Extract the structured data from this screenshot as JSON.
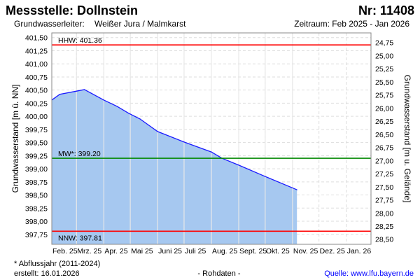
{
  "header": {
    "title": "Messstelle: Dollnstein",
    "number": "Nr: 11408",
    "aquifer_label": "Grundwasserleiter:",
    "aquifer_value": "Weißer Jura / Malmkarst",
    "period": "Zeitraum: Feb 2025 - Jan 2026"
  },
  "footer": {
    "note": "* Abflussjahr (2011-2024)",
    "created": "erstellt:  16.01.2026",
    "rawdata": "- Rohdaten -",
    "source": "Quelle: www.lfu.bayern.de"
  },
  "colors": {
    "fill": "#a6c8f0",
    "line": "#1a1aff",
    "hhw": "#ff0000",
    "mw": "#008800",
    "nnw": "#ff0000",
    "source": "#0000ff"
  },
  "chart_data": {
    "type": "area",
    "ylabel": "Grundwasserstand [m ü. NN]",
    "ylabel_right": "Grundwasserstand [m u. Gelände]",
    "ylim": [
      397.56,
      401.59
    ],
    "yticks": [
      "401,50",
      "401,25",
      "401,00",
      "400,75",
      "400,50",
      "400,25",
      "400,00",
      "399,75",
      "399,50",
      "399,25",
      "399,00",
      "398,75",
      "398,50",
      "398,25",
      "398,00",
      "397,75"
    ],
    "ytick_values": [
      401.5,
      401.25,
      401.0,
      400.75,
      400.5,
      400.25,
      400.0,
      399.75,
      399.5,
      399.25,
      399.0,
      398.75,
      398.5,
      398.25,
      398.0,
      397.75
    ],
    "right_offset": 426.157,
    "yticks_right": [
      "24,75",
      "25,00",
      "25,25",
      "25,50",
      "25,75",
      "26,00",
      "26,25",
      "26,50",
      "26,75",
      "27,00",
      "27,25",
      "27,50",
      "27,75",
      "28,00",
      "28,25",
      "28,50"
    ],
    "ytick_right_values": [
      24.75,
      25.0,
      25.25,
      25.5,
      25.75,
      26.0,
      26.25,
      26.5,
      26.75,
      27.0,
      27.25,
      27.5,
      27.75,
      28.0,
      28.25,
      28.5
    ],
    "xlim": [
      "2025-02-01",
      "2026-01-29"
    ],
    "xticks": [
      "Feb. 25",
      "Mrz. 25",
      "Apr. 25",
      "Mai 25",
      "Juni 25",
      "Juli 25",
      "Aug. 25",
      "Sept. 25",
      "Okt. 25",
      "Nov. 25",
      "Dez. 25",
      "Jan. 26"
    ],
    "xtick_dates": [
      "2025-02-01",
      "2025-03-01",
      "2025-04-01",
      "2025-05-01",
      "2025-06-01",
      "2025-07-01",
      "2025-08-01",
      "2025-09-01",
      "2025-10-01",
      "2025-11-01",
      "2025-12-01",
      "2026-01-01"
    ],
    "series": [
      {
        "name": "Grundwasserstand",
        "x": [
          "2025-02-01",
          "2025-02-10",
          "2025-03-01",
          "2025-03-10",
          "2025-04-01",
          "2025-04-16",
          "2025-04-29",
          "2025-05-12",
          "2025-06-01",
          "2025-07-01",
          "2025-08-01",
          "2025-08-13",
          "2025-09-01",
          "2025-09-30",
          "2025-11-06"
        ],
        "y": [
          400.31,
          400.42,
          400.48,
          400.51,
          400.31,
          400.19,
          400.06,
          399.95,
          399.71,
          399.51,
          399.32,
          399.2,
          399.07,
          398.86,
          398.6
        ]
      }
    ],
    "reference_lines": [
      {
        "name": "HHW",
        "label": "HHW: 401.36",
        "value": 401.36
      },
      {
        "name": "MW",
        "label": "MW*: 399.20",
        "value": 399.2
      },
      {
        "name": "NNW",
        "label": "NNW: 397.81",
        "value": 397.81
      }
    ],
    "grid": true,
    "legend": "none"
  }
}
